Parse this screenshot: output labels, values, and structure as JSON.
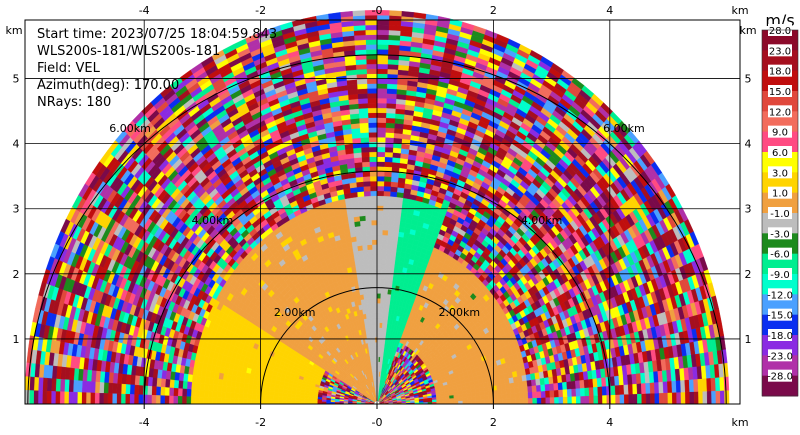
{
  "chart_data": {
    "type": "heatmap",
    "subtype": "radar-ppi-sector",
    "field": "VEL",
    "info_lines": [
      "Start time: 2023/07/25 18:04:59.843",
      "WLS200s-181/WLS200s-181",
      "Field: VEL",
      "Azimuth(deg): 170.00",
      "NRays: 180"
    ],
    "x_range_km": [
      -6.0,
      6.0
    ],
    "y_range_km": [
      0.0,
      5.9
    ],
    "x_ticks": [
      {
        "value": -4,
        "label": "-4"
      },
      {
        "value": -2,
        "label": "-2"
      },
      {
        "value": 0,
        "label": "-0"
      },
      {
        "value": 2,
        "label": "2"
      },
      {
        "value": 4,
        "label": "4"
      }
    ],
    "y_ticks": [
      {
        "value": 1,
        "label": "1"
      },
      {
        "value": 2,
        "label": "2"
      },
      {
        "value": 3,
        "label": "3"
      },
      {
        "value": 4,
        "label": "4"
      },
      {
        "value": 5,
        "label": "5"
      }
    ],
    "axis_unit_label": "km",
    "range_rings": [
      {
        "km": 2,
        "label": "2.00km"
      },
      {
        "km": 4,
        "label": "4.00km"
      },
      {
        "km": 6,
        "label": "6.00km"
      }
    ],
    "max_range_km": 6.0,
    "sector_deg": [
      0,
      180
    ],
    "grid": true,
    "colorbar": {
      "unit": "m/s",
      "placement": "right",
      "labels": [
        "28.0",
        "23.0",
        "18.0",
        "15.0",
        "12.0",
        "9.0",
        "6.0",
        "3.0",
        "1.0",
        "-1.0",
        "-3.0",
        "-6.0",
        "-9.0",
        "-12.0",
        "-15.0",
        "-18.0",
        "-23.0",
        "-28.0"
      ],
      "colors": [
        "#8b0a2a",
        "#a50f1e",
        "#c00e0e",
        "#e0483c",
        "#f26c5c",
        "#ff4b82",
        "#ffff00",
        "#ffd400",
        "#f0a040",
        "#bdbdbd",
        "#1d8a1d",
        "#00ee90",
        "#00ffcc",
        "#4aa0ff",
        "#0a2ef0",
        "#8a2be2",
        "#b030a8",
        "#7a0a4a"
      ]
    },
    "velocity_structure": [
      {
        "az_from": 0,
        "az_to": 68,
        "range_km": [
          1.0,
          2.6
        ],
        "value": 1.5
      },
      {
        "az_from": 68,
        "az_to": 82,
        "range_km": [
          0.0,
          3.2
        ],
        "value": -4.5
      },
      {
        "az_from": 82,
        "az_to": 90,
        "range_km": [
          0.0,
          3.2
        ],
        "value": 0.0
      },
      {
        "az_from": 90,
        "az_to": 100,
        "range_km": [
          0.0,
          3.2
        ],
        "value": 0.0
      },
      {
        "az_from": 100,
        "az_to": 150,
        "range_km": [
          0.0,
          3.2
        ],
        "value": 2.0
      },
      {
        "az_from": 150,
        "az_to": 180,
        "range_km": [
          1.0,
          3.2
        ],
        "value": 4.5
      }
    ]
  }
}
